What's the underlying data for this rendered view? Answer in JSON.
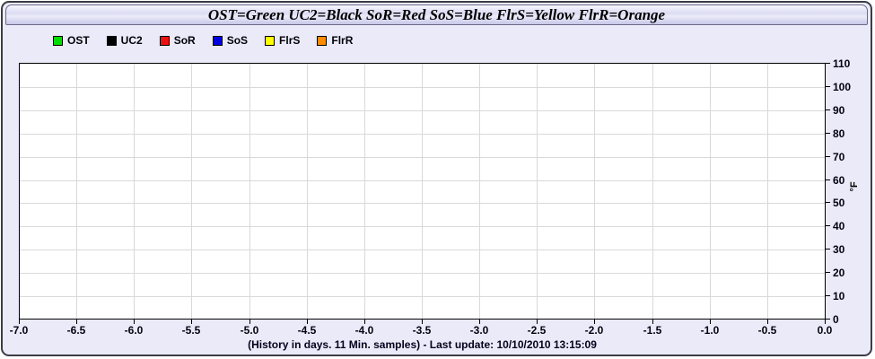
{
  "window": {
    "title": "OST=Green UC2=Black SoR=Red SoS=Blue FlrS=Yellow FlrR=Orange"
  },
  "legend": {
    "items": [
      {
        "label": "OST",
        "color": "#00dd00"
      },
      {
        "label": "UC2",
        "color": "#000000"
      },
      {
        "label": "SoR",
        "color": "#ee1111"
      },
      {
        "label": "SoS",
        "color": "#0000dd"
      },
      {
        "label": "FlrS",
        "color": "#ffff00"
      },
      {
        "label": "FlrR",
        "color": "#ff8c00"
      }
    ]
  },
  "chart_data": {
    "type": "line",
    "title": "OST=Green UC2=Black SoR=Red SoS=Blue FlrS=Yellow FlrR=Orange",
    "xlabel": "(History in days. 11 Min. samples) - Last update: 10/10/2010 13:15:09",
    "ylabel": "°F",
    "xlim": [
      -7.0,
      0.0
    ],
    "ylim": [
      0,
      110
    ],
    "x_tick_labels": [
      "-7.0",
      "-6.5",
      "-6.0",
      "-5.5",
      "-5.0",
      "-4.5",
      "-4.0",
      "-3.5",
      "-3.0",
      "-2.5",
      "-2.0",
      "-1.5",
      "-1.0",
      "-0.5",
      "0.0"
    ],
    "y_tick_labels": [
      "0",
      "10",
      "20",
      "30",
      "40",
      "50",
      "60",
      "70",
      "80",
      "90",
      "100",
      "110"
    ],
    "grid": true,
    "legend_position": "top-left",
    "series": [
      {
        "name": "OST",
        "color": "#00dd00",
        "x": [],
        "values": []
      },
      {
        "name": "UC2",
        "color": "#000000",
        "x": [],
        "values": []
      },
      {
        "name": "SoR",
        "color": "#ee1111",
        "x": [],
        "values": []
      },
      {
        "name": "SoS",
        "color": "#0000dd",
        "x": [],
        "values": []
      },
      {
        "name": "FlrS",
        "color": "#ffff00",
        "x": [],
        "values": []
      },
      {
        "name": "FlrR",
        "color": "#ff8c00",
        "x": [],
        "values": []
      }
    ],
    "note": "plot area is empty - no data points drawn"
  },
  "footer": {
    "caption": "(History in days. 11 Min. samples) - Last update: 10/10/2010 13:15:09"
  }
}
